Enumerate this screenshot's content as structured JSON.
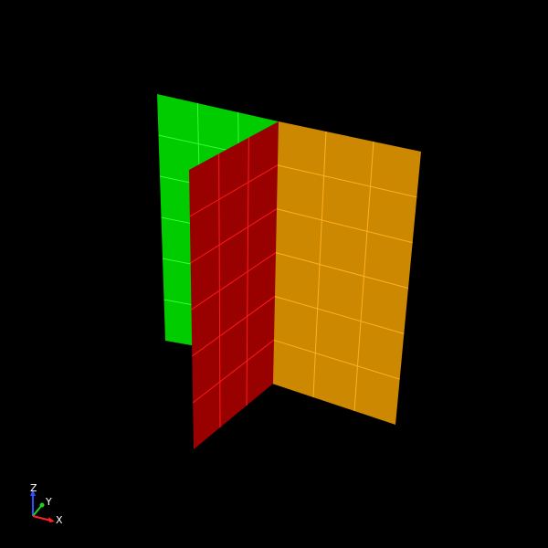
{
  "scene": {
    "background_color": "#000000",
    "panels": [
      {
        "name": "green-panel",
        "fill": "#00cc00",
        "grid_color": "#33ff33",
        "columns": 3,
        "rows": 6
      },
      {
        "name": "red-panel",
        "fill": "#990000",
        "grid_color": "#ff1a1a",
        "columns": 3,
        "rows": 6
      },
      {
        "name": "orange-panel",
        "fill": "#cc8800",
        "grid_color": "#ffb020",
        "columns": 3,
        "rows": 6
      }
    ]
  },
  "axis_triad": {
    "x_label": "X",
    "y_label": "Y",
    "z_label": "Z",
    "x_color": "#ff2020",
    "y_color": "#20d020",
    "z_color": "#3050ff",
    "label_color": "#ffffff"
  }
}
